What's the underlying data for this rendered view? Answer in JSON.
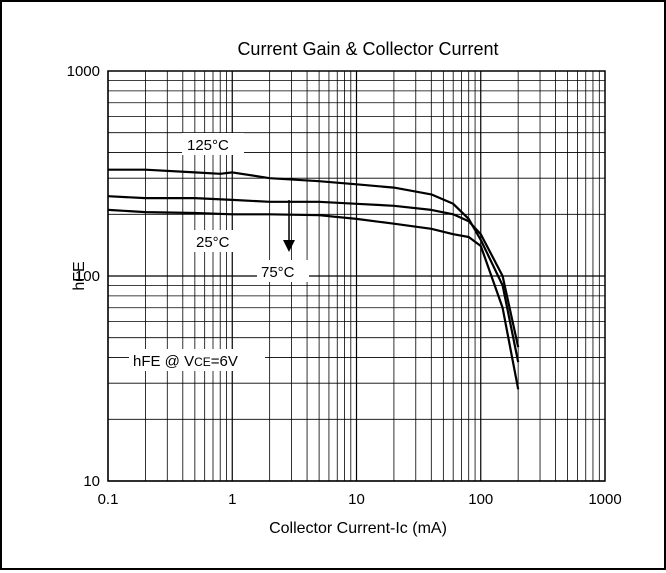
{
  "chart_data": {
    "type": "line",
    "title": "Current Gain & Collector Current",
    "xlabel": "Collector Current-Ic (mA)",
    "ylabel": "hFE",
    "x_scale": "log",
    "y_scale": "log",
    "xlim": [
      0.1,
      1000
    ],
    "ylim": [
      10,
      1000
    ],
    "x_ticks": [
      "0.1",
      "1",
      "10",
      "100",
      "1000"
    ],
    "y_ticks": [
      "10",
      "100",
      "1000"
    ],
    "grid": true,
    "series": [
      {
        "name": "125°C",
        "x": [
          0.1,
          0.2,
          0.5,
          0.8,
          1,
          2,
          5,
          10,
          20,
          40,
          60,
          80,
          100,
          150,
          200
        ],
        "y": [
          330,
          330,
          320,
          315,
          320,
          300,
          290,
          280,
          270,
          250,
          225,
          190,
          150,
          90,
          38
        ]
      },
      {
        "name": "75°C",
        "x": [
          0.1,
          0.2,
          0.5,
          1,
          2,
          5,
          10,
          20,
          40,
          60,
          80,
          100,
          150,
          200
        ],
        "y": [
          245,
          240,
          240,
          235,
          230,
          230,
          225,
          220,
          210,
          200,
          185,
          160,
          100,
          45
        ]
      },
      {
        "name": "25°C",
        "x": [
          0.1,
          0.2,
          0.5,
          1,
          2,
          5,
          10,
          20,
          40,
          60,
          80,
          100,
          150,
          200
        ],
        "y": [
          210,
          205,
          203,
          200,
          200,
          198,
          190,
          180,
          170,
          160,
          155,
          140,
          70,
          28
        ]
      }
    ],
    "annotations": {
      "label_125": "125°C",
      "label_25": "25°C",
      "label_75": "75°C",
      "condition_main": "hFE @ V",
      "condition_sub": "CE",
      "condition_end": "=6V"
    }
  }
}
